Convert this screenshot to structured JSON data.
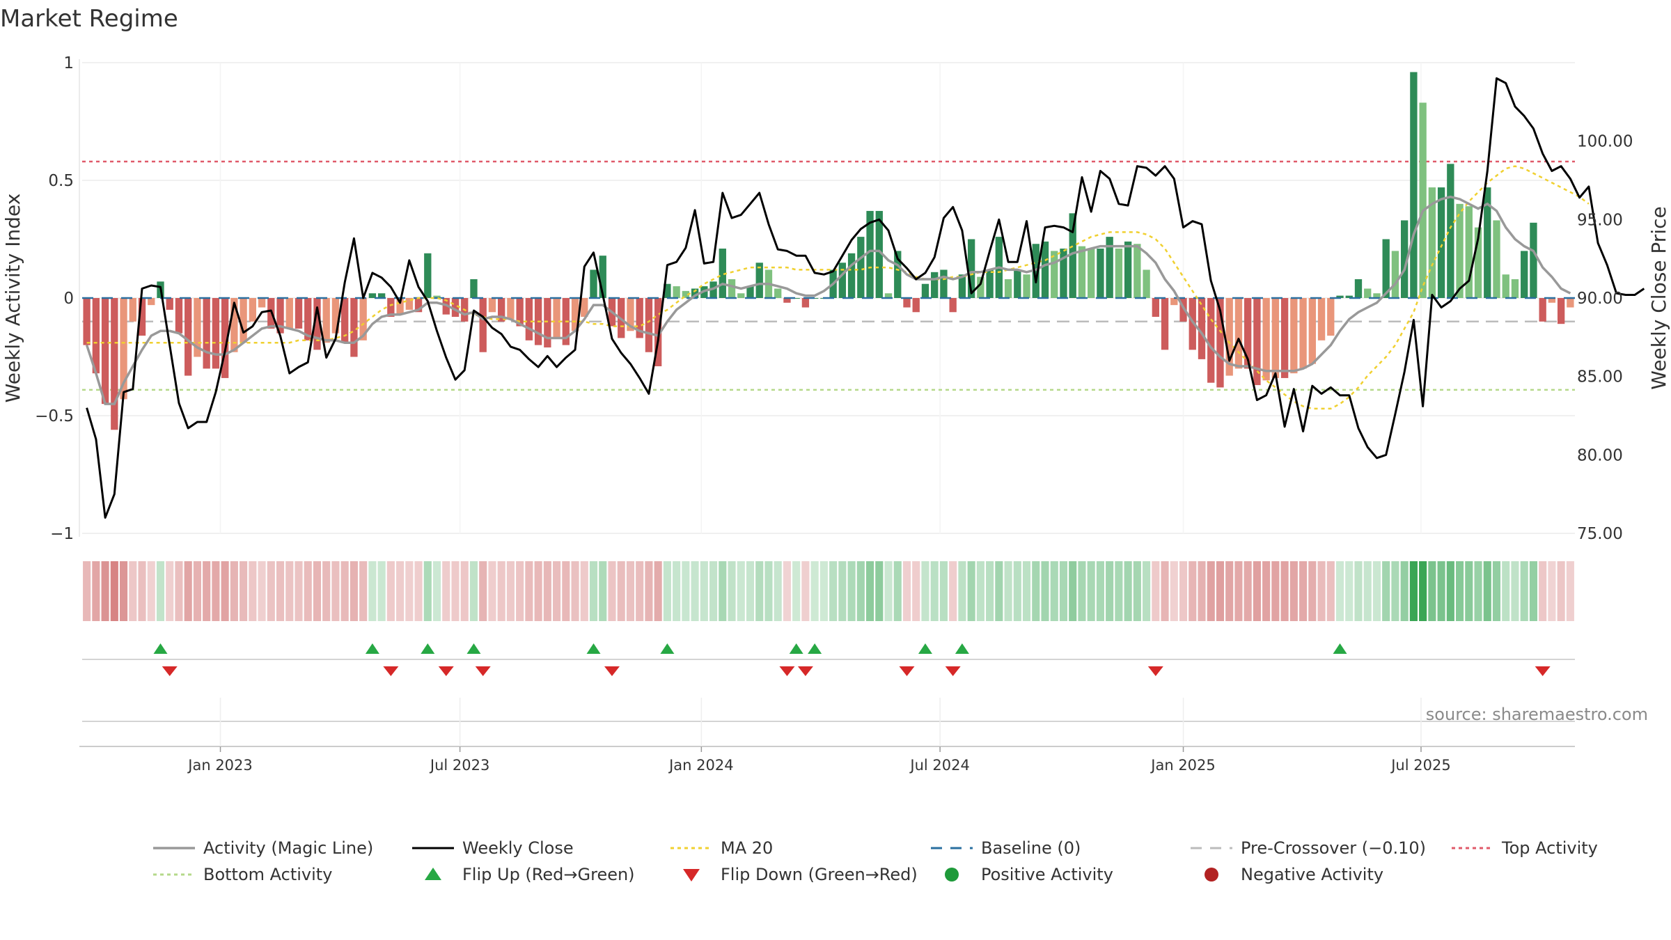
{
  "chart_data": {
    "type": "bar",
    "title": "Market Regime",
    "ylabel_left": "Weekly Activity Index",
    "ylabel_right": "Weekly Close Price",
    "source": "source: sharemaestro.com",
    "left_ylim": [
      -1,
      1
    ],
    "right_ylim": [
      75,
      105
    ],
    "left_ticks": [
      {
        "value": 1,
        "label": "1"
      },
      {
        "value": 0.5,
        "label": "0.5"
      },
      {
        "value": 0,
        "label": "0"
      },
      {
        "value": -0.5,
        "label": "−0.5"
      },
      {
        "value": -1,
        "label": "−1"
      }
    ],
    "right_ticks": [
      {
        "value": 100,
        "label": "100.00"
      },
      {
        "value": 95,
        "label": "95.00"
      },
      {
        "value": 90,
        "label": "90.00"
      },
      {
        "value": 85,
        "label": "85.00"
      },
      {
        "value": 80,
        "label": "80.00"
      },
      {
        "value": 75,
        "label": "75.00"
      }
    ],
    "date_ticks": [
      {
        "week": 14.5,
        "label": "Jan 2023"
      },
      {
        "week": 40.5,
        "label": "Jul 2023"
      },
      {
        "week": 66.7,
        "label": "Jan 2024"
      },
      {
        "week": 92.6,
        "label": "Jul 2024"
      },
      {
        "week": 119.0,
        "label": "Jan 2025"
      },
      {
        "week": 144.8,
        "label": "Jul 2025"
      }
    ],
    "levels": {
      "top": 0.58,
      "bottom": -0.39,
      "baseline": 0,
      "pre_crossover": -0.1
    },
    "activity": [
      -0.2,
      -0.32,
      -0.45,
      -0.56,
      -0.43,
      -0.1,
      -0.16,
      -0.03,
      0.07,
      -0.05,
      -0.15,
      -0.33,
      -0.25,
      -0.3,
      -0.3,
      -0.34,
      -0.23,
      -0.19,
      -0.1,
      -0.04,
      -0.13,
      -0.15,
      -0.13,
      -0.13,
      -0.18,
      -0.22,
      -0.19,
      -0.15,
      -0.19,
      -0.25,
      -0.18,
      0.02,
      0.02,
      -0.08,
      -0.07,
      -0.05,
      -0.06,
      0.19,
      0.01,
      -0.07,
      -0.08,
      -0.1,
      0.08,
      -0.23,
      -0.06,
      -0.1,
      -0.09,
      -0.12,
      -0.18,
      -0.2,
      -0.21,
      -0.17,
      -0.2,
      -0.14,
      -0.08,
      0.12,
      0.18,
      -0.12,
      -0.17,
      -0.14,
      -0.17,
      -0.23,
      -0.29,
      0.06,
      0.05,
      0.03,
      0.04,
      0.05,
      0.07,
      0.21,
      0.08,
      0.02,
      0.05,
      0.15,
      0.12,
      0.04,
      -0.02,
      0,
      -0.04,
      0,
      0,
      0.12,
      0.15,
      0.19,
      0.26,
      0.37,
      0.37,
      0.02,
      0.2,
      -0.04,
      -0.06,
      0.06,
      0.11,
      0.12,
      -0.06,
      0.1,
      0.25,
      0.09,
      0.12,
      0.26,
      0.08,
      0.12,
      0.1,
      0.23,
      0.24,
      0.2,
      0.21,
      0.36,
      0.22,
      0.21,
      0.21,
      0.26,
      0.21,
      0.24,
      0.23,
      0.12,
      -0.08,
      -0.22,
      -0.03,
      -0.1,
      -0.22,
      -0.26,
      -0.36,
      -0.38,
      -0.33,
      -0.3,
      -0.3,
      -0.37,
      -0.35,
      -0.34,
      -0.34,
      -0.32,
      -0.3,
      -0.28,
      -0.18,
      -0.16,
      0.01,
      0.01,
      0.08,
      0.04,
      0.02,
      0.25,
      0.2,
      0.33,
      0.96,
      0.83,
      0.47,
      0.47,
      0.57,
      0.4,
      0.39,
      0.3,
      0.47,
      0.33,
      0.1,
      0.08,
      0.2,
      0.32,
      -0.1,
      -0.02,
      -0.11,
      -0.04
    ],
    "magic_line": [
      -0.2,
      -0.32,
      -0.45,
      -0.45,
      -0.36,
      -0.29,
      -0.22,
      -0.16,
      -0.14,
      -0.14,
      -0.15,
      -0.18,
      -0.21,
      -0.23,
      -0.24,
      -0.24,
      -0.22,
      -0.19,
      -0.16,
      -0.13,
      -0.12,
      -0.12,
      -0.13,
      -0.14,
      -0.16,
      -0.17,
      -0.18,
      -0.18,
      -0.19,
      -0.19,
      -0.16,
      -0.11,
      -0.08,
      -0.07,
      -0.07,
      -0.06,
      -0.05,
      -0.02,
      -0.02,
      -0.03,
      -0.05,
      -0.07,
      -0.06,
      -0.09,
      -0.08,
      -0.08,
      -0.09,
      -0.11,
      -0.13,
      -0.15,
      -0.17,
      -0.17,
      -0.17,
      -0.14,
      -0.09,
      -0.03,
      -0.03,
      -0.06,
      -0.09,
      -0.12,
      -0.14,
      -0.15,
      -0.16,
      -0.1,
      -0.05,
      -0.02,
      0.01,
      0.03,
      0.04,
      0.06,
      0.05,
      0.04,
      0.05,
      0.06,
      0.06,
      0.05,
      0.04,
      0.02,
      0.01,
      0.01,
      0.03,
      0.06,
      0.1,
      0.14,
      0.17,
      0.2,
      0.2,
      0.16,
      0.14,
      0.1,
      0.08,
      0.08,
      0.08,
      0.09,
      0.08,
      0.09,
      0.11,
      0.11,
      0.12,
      0.13,
      0.12,
      0.12,
      0.11,
      0.12,
      0.14,
      0.15,
      0.17,
      0.19,
      0.2,
      0.21,
      0.22,
      0.22,
      0.22,
      0.22,
      0.22,
      0.19,
      0.15,
      0.08,
      0.03,
      -0.04,
      -0.1,
      -0.15,
      -0.21,
      -0.25,
      -0.28,
      -0.29,
      -0.29,
      -0.3,
      -0.31,
      -0.31,
      -0.31,
      -0.31,
      -0.3,
      -0.28,
      -0.24,
      -0.2,
      -0.14,
      -0.09,
      -0.06,
      -0.04,
      -0.02,
      0.02,
      0.06,
      0.12,
      0.27,
      0.37,
      0.4,
      0.42,
      0.43,
      0.42,
      0.4,
      0.38,
      0.4,
      0.37,
      0.3,
      0.25,
      0.22,
      0.2,
      0.13,
      0.09,
      0.04,
      0.02
    ],
    "ma20": [
      -0.19,
      -0.19,
      -0.19,
      -0.19,
      -0.19,
      -0.19,
      -0.19,
      -0.19,
      -0.19,
      -0.19,
      -0.19,
      -0.19,
      -0.19,
      -0.19,
      -0.19,
      -0.19,
      -0.19,
      -0.19,
      -0.19,
      -0.19,
      -0.19,
      -0.19,
      -0.19,
      -0.18,
      -0.18,
      -0.18,
      -0.18,
      -0.17,
      -0.16,
      -0.14,
      -0.11,
      -0.08,
      -0.05,
      -0.03,
      -0.02,
      -0.01,
      0,
      0,
      0,
      -0.01,
      -0.03,
      -0.05,
      -0.07,
      -0.08,
      -0.09,
      -0.09,
      -0.09,
      -0.1,
      -0.1,
      -0.1,
      -0.1,
      -0.1,
      -0.1,
      -0.1,
      -0.1,
      -0.11,
      -0.11,
      -0.12,
      -0.12,
      -0.12,
      -0.12,
      -0.1,
      -0.07,
      -0.05,
      -0.02,
      0.01,
      0.03,
      0.06,
      0.08,
      0.1,
      0.11,
      0.12,
      0.13,
      0.13,
      0.13,
      0.13,
      0.13,
      0.12,
      0.12,
      0.12,
      0.12,
      0.12,
      0.12,
      0.12,
      0.12,
      0.13,
      0.13,
      0.13,
      0.12,
      0.11,
      0.09,
      0.08,
      0.08,
      0.08,
      0.09,
      0.09,
      0.1,
      0.11,
      0.11,
      0.11,
      0.12,
      0.13,
      0.14,
      0.15,
      0.16,
      0.18,
      0.2,
      0.22,
      0.24,
      0.26,
      0.27,
      0.28,
      0.28,
      0.28,
      0.28,
      0.27,
      0.25,
      0.21,
      0.15,
      0.09,
      0.03,
      -0.03,
      -0.09,
      -0.14,
      -0.19,
      -0.23,
      -0.27,
      -0.31,
      -0.35,
      -0.38,
      -0.41,
      -0.44,
      -0.46,
      -0.47,
      -0.47,
      -0.47,
      -0.45,
      -0.42,
      -0.38,
      -0.33,
      -0.29,
      -0.25,
      -0.2,
      -0.13,
      -0.06,
      0.05,
      0.14,
      0.22,
      0.3,
      0.36,
      0.41,
      0.45,
      0.49,
      0.52,
      0.55,
      0.56,
      0.55,
      0.53,
      0.51,
      0.49,
      0.47,
      0.45,
      0.43,
      0.4
    ],
    "close": [
      83,
      81,
      76,
      77.5,
      84,
      84.2,
      90.6,
      90.8,
      90.7,
      87,
      83.3,
      81.7,
      82.1,
      82.1,
      84,
      86.6,
      89.7,
      87.8,
      88.2,
      89.1,
      89.2,
      87.6,
      85.2,
      85.6,
      85.9,
      89.4,
      86.2,
      87.4,
      91,
      93.8,
      90,
      91.6,
      91.3,
      90.7,
      89.7,
      92.4,
      90.7,
      89.8,
      87.9,
      86.2,
      84.8,
      85.4,
      89.2,
      88.8,
      88.1,
      87.7,
      86.9,
      86.7,
      86.1,
      85.6,
      86.3,
      85.6,
      86.2,
      86.7,
      92,
      92.9,
      90.2,
      87.4,
      86.5,
      85.8,
      84.9,
      83.9,
      87.3,
      92.1,
      92.3,
      93.2,
      95.6,
      92.2,
      92.3,
      96.7,
      95.1,
      95.3,
      96,
      96.7,
      94.7,
      93.1,
      93,
      92.7,
      92.7,
      91.6,
      91.5,
      91.7,
      92.7,
      93.7,
      94.4,
      94.8,
      95,
      94.3,
      92.5,
      91.9,
      91.2,
      91.6,
      92.6,
      95.1,
      95.8,
      94.3,
      90.3,
      90.9,
      93,
      95,
      92.3,
      92.3,
      94.9,
      91,
      94.5,
      94.6,
      94.5,
      94.2,
      97.7,
      95.5,
      98.1,
      97.6,
      96,
      95.9,
      98.4,
      98.3,
      97.8,
      98.4,
      97.6,
      94.5,
      94.9,
      94.7,
      91.1,
      89.2,
      86,
      87.4,
      86.1,
      83.5,
      83.8,
      85.2,
      81.8,
      84.2,
      81.5,
      84.4,
      83.9,
      84.3,
      83.8,
      83.8,
      81.7,
      80.5,
      79.8,
      80,
      82.6,
      85.3,
      88.6,
      83.1,
      90.2,
      89.4,
      89.8,
      90.6,
      91.1,
      93.8,
      98.1,
      104,
      103.7,
      102.2,
      101.6,
      100.8,
      99.2,
      98.1,
      98.4,
      97.6,
      96.4,
      97.1,
      93.5,
      92.1,
      90.3,
      90.2,
      90.2,
      90.6
    ]
  },
  "legend": [
    {
      "label": "Activity (Magic Line)"
    },
    {
      "label": "Weekly Close"
    },
    {
      "label": "MA 20"
    },
    {
      "label": "Baseline (0)"
    },
    {
      "label": "Pre-Crossover (−0.10)"
    },
    {
      "label": "Top Activity"
    },
    {
      "label": "Bottom Activity"
    },
    {
      "label": "Flip Up (Red→Green)"
    },
    {
      "label": "Flip Down (Green→Red)"
    },
    {
      "label": "Positive Activity"
    },
    {
      "label": "Negative Activity"
    }
  ],
  "colors": {
    "strong_green": "#2e8b57",
    "light_green": "#7fc17f",
    "strong_red": "#cd5c5c",
    "light_red": "#e9967a",
    "close_line": "#000000",
    "magic_line": "#999999",
    "ma20": "#f0d030",
    "baseline": "#2a6fa0",
    "pre_crossover": "#bbbbbb",
    "top": "#e05a6a",
    "bottom": "#b5d98a",
    "flip_up": "#27a844",
    "flip_down": "#d62828",
    "pos_dot": "#1e9a3a",
    "neg_dot": "#b22222",
    "grid": "#ececec"
  }
}
